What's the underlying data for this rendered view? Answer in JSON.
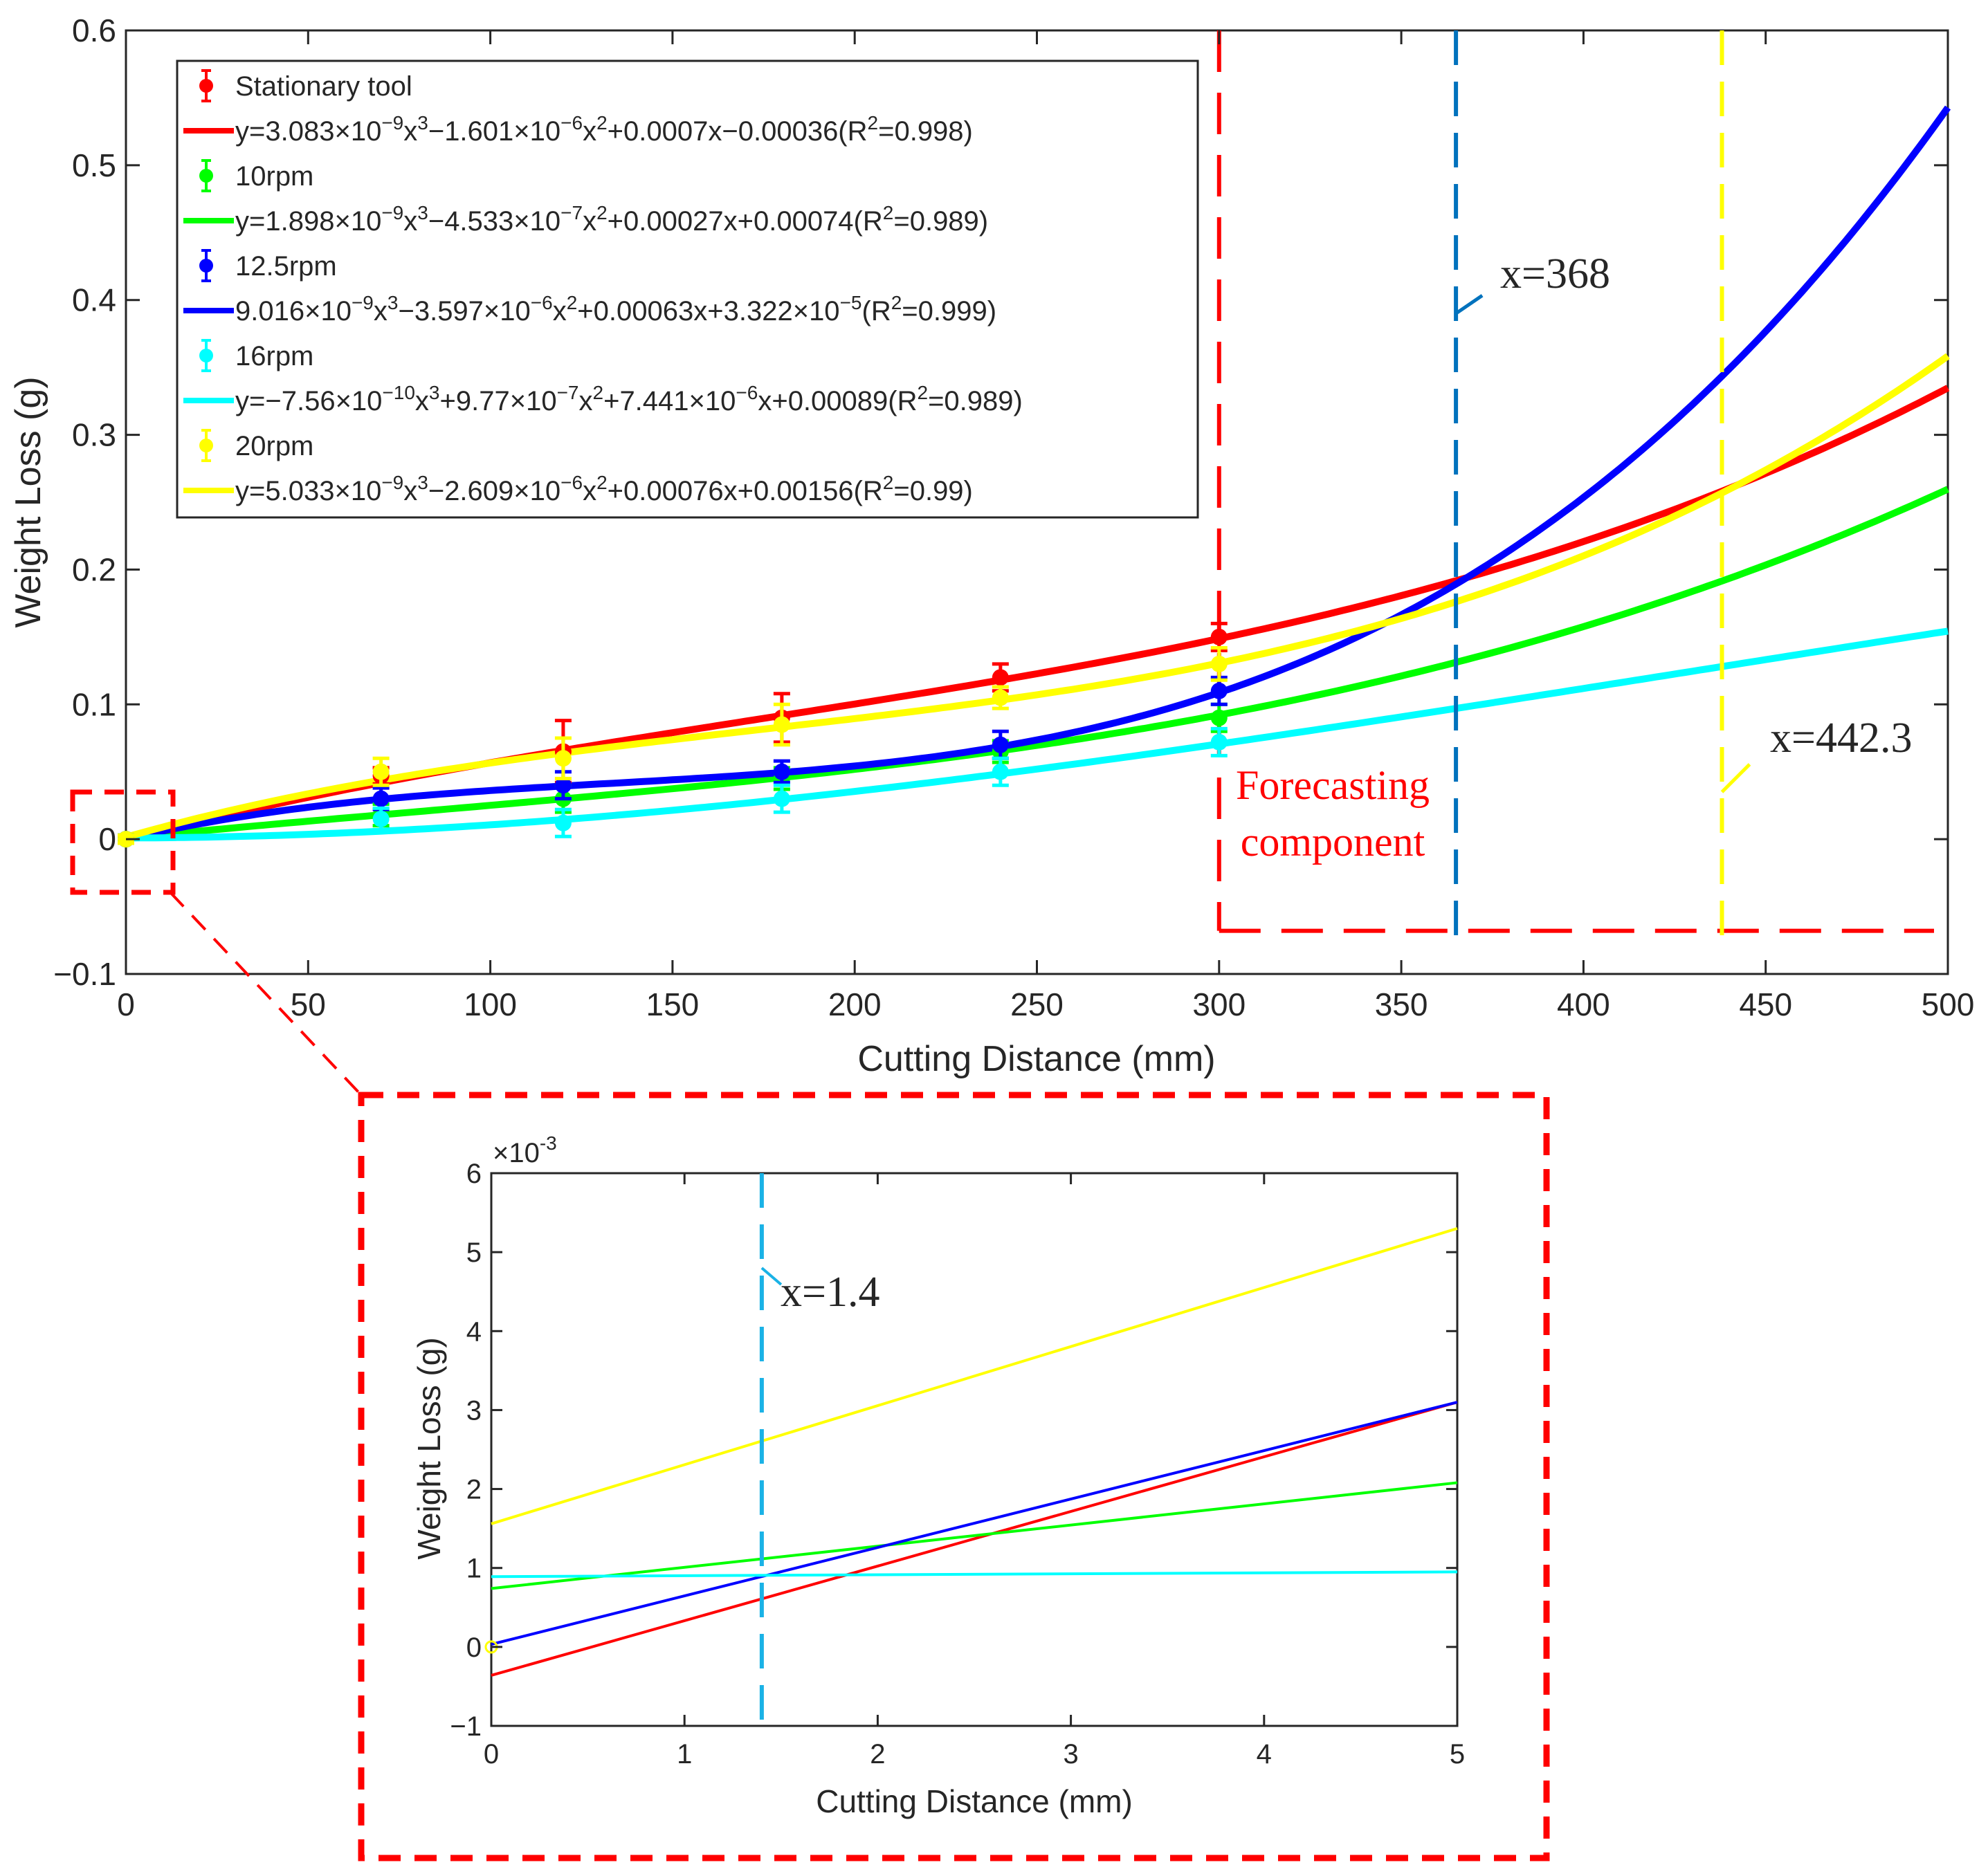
{
  "colors": {
    "stationary": "#ff0000",
    "rpm10": "#00ff00",
    "rpm12_5": "#0000ff",
    "rpm16": "#00ffff",
    "rpm20": "#ffff00",
    "marker_368": "#0072bd",
    "marker_442": "#ffff00",
    "marker_1_4": "#1ab2e6",
    "forecast": "#ff0000",
    "zoom_box": "#ff0000"
  },
  "chart_data": [
    {
      "type": "line",
      "name": "main",
      "xlabel": "Cutting Distance (mm)",
      "ylabel": "Weight Loss (g)",
      "xlim": [
        0,
        500
      ],
      "ylim": [
        -0.1,
        0.6
      ],
      "xticks": [
        0,
        50,
        100,
        150,
        200,
        250,
        300,
        350,
        400,
        450,
        500
      ],
      "yticks": [
        -0.1,
        0,
        0.1,
        0.2,
        0.3,
        0.4,
        0.5,
        0.6
      ],
      "xtick_labels": [
        "0",
        "50",
        "100",
        "150",
        "200",
        "250",
        "300",
        "350",
        "400",
        "450",
        "500"
      ],
      "ytick_labels": [
        "−0.1",
        "0",
        "0.1",
        "0.2",
        "0.3",
        "0.4",
        "0.5",
        "0.6"
      ],
      "grid": false,
      "legend_position": "top-left",
      "series": [
        {
          "name": "Stationary tool",
          "color_key": "stationary",
          "points": [
            {
              "x": 0,
              "y": 0,
              "err": 0.003
            },
            {
              "x": 70,
              "y": 0.047,
              "err": 0.006
            },
            {
              "x": 120,
              "y": 0.065,
              "err": 0.023
            },
            {
              "x": 180,
              "y": 0.09,
              "err": 0.018
            },
            {
              "x": 240,
              "y": 0.12,
              "err": 0.01
            },
            {
              "x": 300,
              "y": 0.15,
              "err": 0.01
            }
          ],
          "fit_label_parts": [
            {
              "t": "y=3.083×10"
            },
            {
              "t": "−9",
              "sup": true
            },
            {
              "t": "x"
            },
            {
              "t": "3",
              "sup": true
            },
            {
              "t": "−1.601×10"
            },
            {
              "t": "−6",
              "sup": true
            },
            {
              "t": "x"
            },
            {
              "t": "2",
              "sup": true
            },
            {
              "t": "+0.0007x−0.00036(R"
            },
            {
              "t": "2",
              "sup": true
            },
            {
              "t": "=0.998)"
            }
          ],
          "coeffs": {
            "a3": 3.083e-09,
            "a2": -1.601e-06,
            "a1": 0.0007,
            "a0": -0.00036
          }
        },
        {
          "name": "10rpm",
          "color_key": "rpm10",
          "points": [
            {
              "x": 0,
              "y": 0,
              "err": 0.003
            },
            {
              "x": 70,
              "y": 0.018,
              "err": 0.008
            },
            {
              "x": 120,
              "y": 0.03,
              "err": 0.01
            },
            {
              "x": 180,
              "y": 0.045,
              "err": 0.008
            },
            {
              "x": 240,
              "y": 0.065,
              "err": 0.008
            },
            {
              "x": 300,
              "y": 0.09,
              "err": 0.01
            }
          ],
          "fit_label_parts": [
            {
              "t": "y=1.898×10"
            },
            {
              "t": "−9",
              "sup": true
            },
            {
              "t": "x"
            },
            {
              "t": "3",
              "sup": true
            },
            {
              "t": "−4.533×10"
            },
            {
              "t": "−7",
              "sup": true
            },
            {
              "t": "x"
            },
            {
              "t": "2",
              "sup": true
            },
            {
              "t": "+0.00027x+0.00074(R"
            },
            {
              "t": "2",
              "sup": true
            },
            {
              "t": "=0.989)"
            }
          ],
          "coeffs": {
            "a3": 1.898e-09,
            "a2": -4.533e-07,
            "a1": 0.00027,
            "a0": 0.00074
          }
        },
        {
          "name": "12.5rpm",
          "color_key": "rpm12_5",
          "points": [
            {
              "x": 0,
              "y": 0,
              "err": 0.003
            },
            {
              "x": 70,
              "y": 0.03,
              "err": 0.008
            },
            {
              "x": 120,
              "y": 0.04,
              "err": 0.01
            },
            {
              "x": 180,
              "y": 0.05,
              "err": 0.008
            },
            {
              "x": 240,
              "y": 0.07,
              "err": 0.01
            },
            {
              "x": 300,
              "y": 0.11,
              "err": 0.01
            }
          ],
          "fit_label_parts": [
            {
              "t": "9.016×10"
            },
            {
              "t": "−9",
              "sup": true
            },
            {
              "t": "x"
            },
            {
              "t": "3",
              "sup": true
            },
            {
              "t": "−3.597×10"
            },
            {
              "t": "−6",
              "sup": true
            },
            {
              "t": "x"
            },
            {
              "t": "2",
              "sup": true
            },
            {
              "t": "+0.00063x+3.322×10"
            },
            {
              "t": "−5",
              "sup": true
            },
            {
              "t": "(R"
            },
            {
              "t": "2",
              "sup": true
            },
            {
              "t": "=0.999)"
            }
          ],
          "coeffs": {
            "a3": 9.016e-09,
            "a2": -3.597e-06,
            "a1": 0.00063,
            "a0": 3.322e-05
          }
        },
        {
          "name": "16rpm",
          "color_key": "rpm16",
          "points": [
            {
              "x": 0,
              "y": 0,
              "err": 0.003
            },
            {
              "x": 70,
              "y": 0.015,
              "err": 0.008
            },
            {
              "x": 120,
              "y": 0.012,
              "err": 0.01
            },
            {
              "x": 180,
              "y": 0.03,
              "err": 0.01
            },
            {
              "x": 240,
              "y": 0.05,
              "err": 0.01
            },
            {
              "x": 300,
              "y": 0.072,
              "err": 0.01
            }
          ],
          "fit_label_parts": [
            {
              "t": "y=−7.56×10"
            },
            {
              "t": "−10",
              "sup": true
            },
            {
              "t": "x"
            },
            {
              "t": "3",
              "sup": true
            },
            {
              "t": "+9.77×10"
            },
            {
              "t": "−7",
              "sup": true
            },
            {
              "t": "x"
            },
            {
              "t": "2",
              "sup": true
            },
            {
              "t": "+7.441×10"
            },
            {
              "t": "−6",
              "sup": true
            },
            {
              "t": "x+0.00089(R"
            },
            {
              "t": "2",
              "sup": true
            },
            {
              "t": "=0.989)"
            }
          ],
          "coeffs": {
            "a3": -7.56e-10,
            "a2": 9.77e-07,
            "a1": 7.441e-06,
            "a0": 0.00089
          }
        },
        {
          "name": "20rpm",
          "color_key": "rpm20",
          "points": [
            {
              "x": 0,
              "y": 0,
              "err": 0.003
            },
            {
              "x": 70,
              "y": 0.05,
              "err": 0.01
            },
            {
              "x": 120,
              "y": 0.06,
              "err": 0.015
            },
            {
              "x": 180,
              "y": 0.085,
              "err": 0.015
            },
            {
              "x": 240,
              "y": 0.105,
              "err": 0.008
            },
            {
              "x": 300,
              "y": 0.13,
              "err": 0.012
            }
          ],
          "fit_label_parts": [
            {
              "t": "y=5.033×10"
            },
            {
              "t": "−9",
              "sup": true
            },
            {
              "t": "x"
            },
            {
              "t": "3",
              "sup": true
            },
            {
              "t": "−2.609×10"
            },
            {
              "t": "−6",
              "sup": true
            },
            {
              "t": "x"
            },
            {
              "t": "2",
              "sup": true
            },
            {
              "t": "+0.00076x+0.00156(R"
            },
            {
              "t": "2",
              "sup": true
            },
            {
              "t": "=0.99)"
            }
          ],
          "coeffs": {
            "a3": 5.033e-09,
            "a2": -2.609e-06,
            "a1": 0.00076,
            "a0": 0.00156
          }
        }
      ],
      "annotations": [
        {
          "label": "x=368",
          "x": 365,
          "color_key": "marker_368"
        },
        {
          "label": "x=442.3",
          "x": 438,
          "color_key": "marker_442"
        }
      ],
      "forecast_region": {
        "label_line1": "Forecasting",
        "label_line2": "component",
        "x_start": 300,
        "x_end": 500,
        "y_bottom": -0.068
      }
    },
    {
      "type": "line",
      "name": "inset",
      "xlabel": "Cutting Distance (mm)",
      "ylabel": "Weight Loss (g)",
      "xlim": [
        0,
        5
      ],
      "ylim": [
        -1,
        6
      ],
      "exponent_base": "×10",
      "exponent_power": "-3",
      "xticks": [
        0,
        1,
        2,
        3,
        4,
        5
      ],
      "yticks": [
        -1,
        0,
        1,
        2,
        3,
        4,
        5,
        6
      ],
      "xtick_labels": [
        "0",
        "1",
        "2",
        "3",
        "4",
        "5"
      ],
      "ytick_labels": [
        "−1",
        "0",
        "1",
        "2",
        "3",
        "4",
        "5",
        "6"
      ],
      "annotation": {
        "label": "x=1.4",
        "x": 1.4,
        "color_key": "marker_1_4"
      },
      "lines": [
        {
          "name": "Stationary tool",
          "color_key": "stationary",
          "y_start": -0.36,
          "y_end": 3.1
        },
        {
          "name": "10rpm",
          "color_key": "rpm10",
          "y_start": 0.74,
          "y_end": 2.08
        },
        {
          "name": "12.5rpm",
          "color_key": "rpm12_5",
          "y_start": 0.033,
          "y_end": 3.1
        },
        {
          "name": "16rpm",
          "color_key": "rpm16",
          "y_start": 0.89,
          "y_end": 0.95
        },
        {
          "name": "20rpm",
          "color_key": "rpm20",
          "y_start": 1.56,
          "y_end": 5.3
        }
      ]
    }
  ]
}
